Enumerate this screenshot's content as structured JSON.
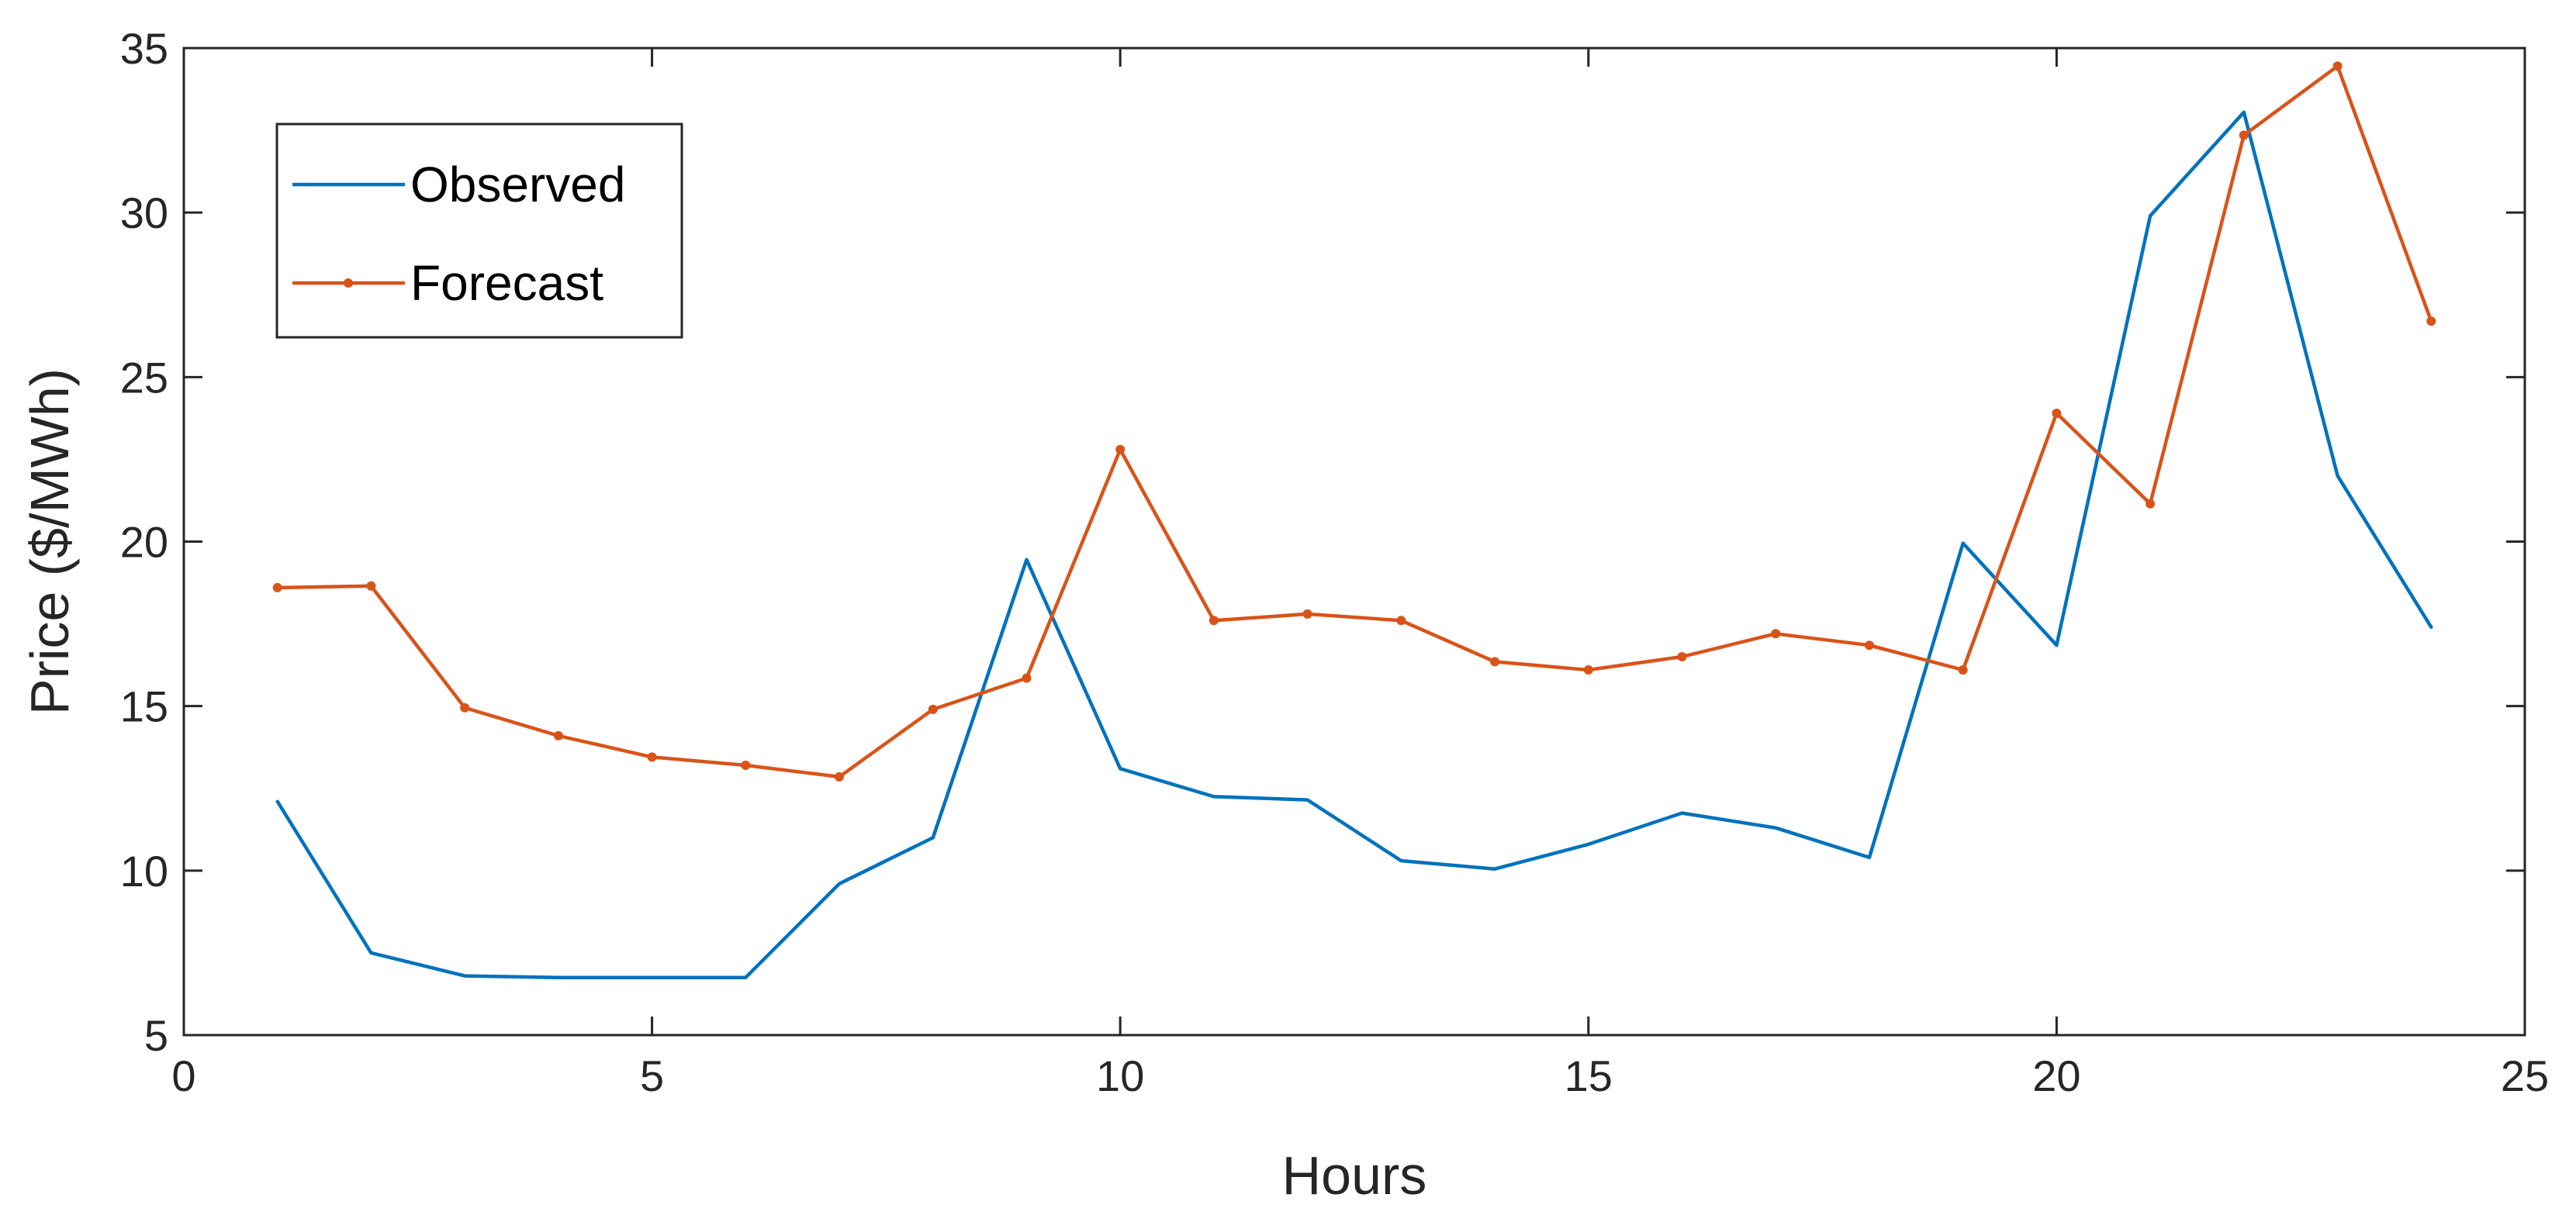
{
  "chart_data": {
    "type": "line",
    "xlabel": "Hours",
    "ylabel": "Price ($/MWh)",
    "xlim": [
      0,
      25
    ],
    "ylim": [
      5,
      35
    ],
    "xticks": [
      0,
      5,
      10,
      15,
      20,
      25
    ],
    "yticks": [
      5,
      10,
      15,
      20,
      25,
      30,
      35
    ],
    "grid": false,
    "legend_position": "top-left",
    "x": [
      1,
      2,
      3,
      4,
      5,
      6,
      7,
      8,
      9,
      10,
      11,
      12,
      13,
      14,
      15,
      16,
      17,
      18,
      19,
      20,
      21,
      22,
      23,
      24
    ],
    "series": [
      {
        "name": "Observed",
        "color": "#0072BD",
        "marker": "none",
        "values": [
          12.1,
          7.5,
          6.8,
          6.75,
          6.75,
          6.75,
          9.6,
          11.0,
          19.45,
          13.1,
          12.25,
          12.15,
          10.3,
          10.05,
          10.8,
          11.75,
          11.3,
          10.4,
          19.95,
          16.85,
          29.9,
          33.05,
          22.0,
          17.4
        ]
      },
      {
        "name": "Forecast",
        "color": "#D95319",
        "marker": "dot",
        "values": [
          18.6,
          18.65,
          14.95,
          14.1,
          13.45,
          13.2,
          12.85,
          14.9,
          15.85,
          22.8,
          17.6,
          17.8,
          17.6,
          16.35,
          16.1,
          16.5,
          17.2,
          16.85,
          16.1,
          23.9,
          21.15,
          32.35,
          34.45,
          26.7
        ]
      }
    ]
  }
}
